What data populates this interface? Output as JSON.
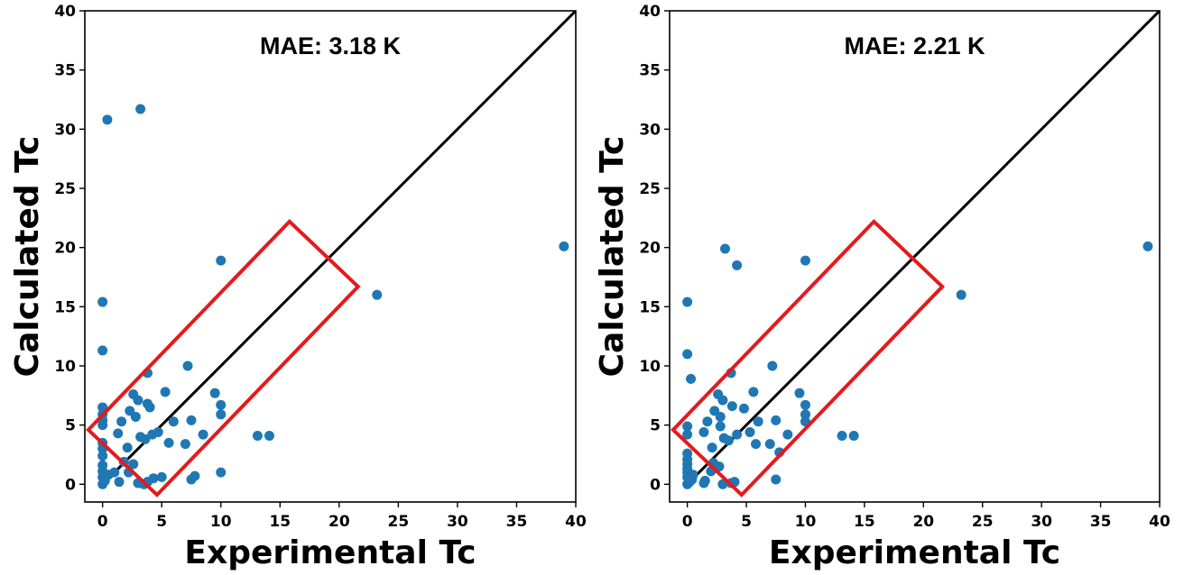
{
  "chart_data": [
    {
      "type": "scatter",
      "xlabel": "Experimental Tc",
      "ylabel": "Calculated Tc",
      "xlim": [
        -1.5,
        40
      ],
      "ylim": [
        -1.5,
        40
      ],
      "xticks": [
        0,
        5,
        10,
        15,
        20,
        25,
        30,
        35,
        40
      ],
      "yticks": [
        0,
        5,
        10,
        15,
        20,
        25,
        30,
        35,
        40
      ],
      "grid": false,
      "annotation": "MAE: 3.18 K",
      "point_color": "#1f77b4",
      "line_color": "#000000",
      "box_color": "#e41a1c",
      "reference_line": [
        [
          0,
          0
        ],
        [
          40,
          40
        ]
      ],
      "highlight_box": [
        [
          -1.2,
          4.6
        ],
        [
          4.6,
          -0.9
        ],
        [
          21.6,
          16.7
        ],
        [
          15.8,
          22.2
        ]
      ],
      "points": [
        [
          0,
          0
        ],
        [
          0.2,
          0.3
        ],
        [
          0.5,
          0.8
        ],
        [
          1,
          1
        ],
        [
          1.4,
          0.2
        ],
        [
          1.8,
          1.9
        ],
        [
          2.2,
          1
        ],
        [
          2.6,
          1.7
        ],
        [
          3,
          0.1
        ],
        [
          3.5,
          0
        ],
        [
          3.8,
          0.2
        ],
        [
          4.3,
          0.5
        ],
        [
          5,
          0.6
        ],
        [
          7.5,
          0.4
        ],
        [
          7.8,
          0.7
        ],
        [
          10,
          1
        ],
        [
          0,
          0.6
        ],
        [
          0,
          1.1
        ],
        [
          0,
          1.6
        ],
        [
          0,
          2.4
        ],
        [
          0,
          3
        ],
        [
          0,
          3.5
        ],
        [
          0,
          5
        ],
        [
          0,
          5.4
        ],
        [
          0,
          5.9
        ],
        [
          0,
          6.5
        ],
        [
          0,
          11.3
        ],
        [
          0,
          15.4
        ],
        [
          0.4,
          30.8
        ],
        [
          3.2,
          31.7
        ],
        [
          1.3,
          4.3
        ],
        [
          1.6,
          5.3
        ],
        [
          2.1,
          3.1
        ],
        [
          2.3,
          6.2
        ],
        [
          2.6,
          7.6
        ],
        [
          2.8,
          5.7
        ],
        [
          3,
          7.1
        ],
        [
          3.2,
          4
        ],
        [
          3.6,
          3.8
        ],
        [
          3.8,
          6.8
        ],
        [
          3.8,
          9.4
        ],
        [
          4,
          6.5
        ],
        [
          4.2,
          4.2
        ],
        [
          4.7,
          4.4
        ],
        [
          5.3,
          7.8
        ],
        [
          5.6,
          3.5
        ],
        [
          6,
          5.3
        ],
        [
          7,
          3.4
        ],
        [
          7.2,
          10
        ],
        [
          7.5,
          5.4
        ],
        [
          8.5,
          4.2
        ],
        [
          9.5,
          7.7
        ],
        [
          10,
          6.7
        ],
        [
          10,
          5.9
        ],
        [
          10,
          18.9
        ],
        [
          13.1,
          4.1
        ],
        [
          14.1,
          4.1
        ],
        [
          23.2,
          16
        ],
        [
          39,
          20.1
        ]
      ]
    },
    {
      "type": "scatter",
      "xlabel": "Experimental Tc",
      "ylabel": "Calculated Tc",
      "xlim": [
        -1.5,
        40
      ],
      "ylim": [
        -1.5,
        40
      ],
      "xticks": [
        0,
        5,
        10,
        15,
        20,
        25,
        30,
        35,
        40
      ],
      "yticks": [
        0,
        5,
        10,
        15,
        20,
        25,
        30,
        35,
        40
      ],
      "grid": false,
      "annotation": "MAE: 2.21 K",
      "point_color": "#1f77b4",
      "line_color": "#000000",
      "box_color": "#e41a1c",
      "reference_line": [
        [
          0,
          0
        ],
        [
          40,
          40
        ]
      ],
      "highlight_box": [
        [
          -1.2,
          4.6
        ],
        [
          4.6,
          -0.9
        ],
        [
          21.6,
          16.7
        ],
        [
          15.8,
          22.2
        ]
      ],
      "points": [
        [
          0,
          0
        ],
        [
          0.2,
          0.2
        ],
        [
          0.4,
          0.4
        ],
        [
          0.5,
          0.8
        ],
        [
          1.4,
          0.1
        ],
        [
          1.5,
          0.3
        ],
        [
          2,
          1.1
        ],
        [
          2.2,
          1.8
        ],
        [
          2.7,
          1.5
        ],
        [
          3,
          0
        ],
        [
          3.7,
          0.1
        ],
        [
          4,
          0.2
        ],
        [
          7.5,
          0.4
        ],
        [
          0,
          0.6
        ],
        [
          0,
          1
        ],
        [
          0,
          1.3
        ],
        [
          0,
          1.7
        ],
        [
          0,
          2.1
        ],
        [
          0,
          2.6
        ],
        [
          0,
          4.2
        ],
        [
          0,
          4.9
        ],
        [
          0,
          11
        ],
        [
          0,
          15.4
        ],
        [
          0.3,
          8.9
        ],
        [
          1.4,
          4.4
        ],
        [
          1.7,
          5.3
        ],
        [
          2.1,
          3.1
        ],
        [
          2.3,
          6.2
        ],
        [
          2.6,
          7.6
        ],
        [
          2.8,
          5.7
        ],
        [
          2.8,
          4.9
        ],
        [
          3,
          7.1
        ],
        [
          3.1,
          3.9
        ],
        [
          3.5,
          3.7
        ],
        [
          3.7,
          9.4
        ],
        [
          3.8,
          6.6
        ],
        [
          4.2,
          4.2
        ],
        [
          4.8,
          6.4
        ],
        [
          5.3,
          4.4
        ],
        [
          5.6,
          7.8
        ],
        [
          5.8,
          3.4
        ],
        [
          6,
          5.3
        ],
        [
          7,
          3.4
        ],
        [
          7.2,
          10
        ],
        [
          7.5,
          5.4
        ],
        [
          7.8,
          2.7
        ],
        [
          8.5,
          4.2
        ],
        [
          9.5,
          7.7
        ],
        [
          10,
          6.7
        ],
        [
          10,
          5.9
        ],
        [
          10,
          5.3
        ],
        [
          13.1,
          4.1
        ],
        [
          14.1,
          4.1
        ],
        [
          3.2,
          19.9
        ],
        [
          4.2,
          18.5
        ],
        [
          10,
          18.9
        ],
        [
          23.2,
          16
        ],
        [
          39,
          20.1
        ]
      ]
    }
  ]
}
